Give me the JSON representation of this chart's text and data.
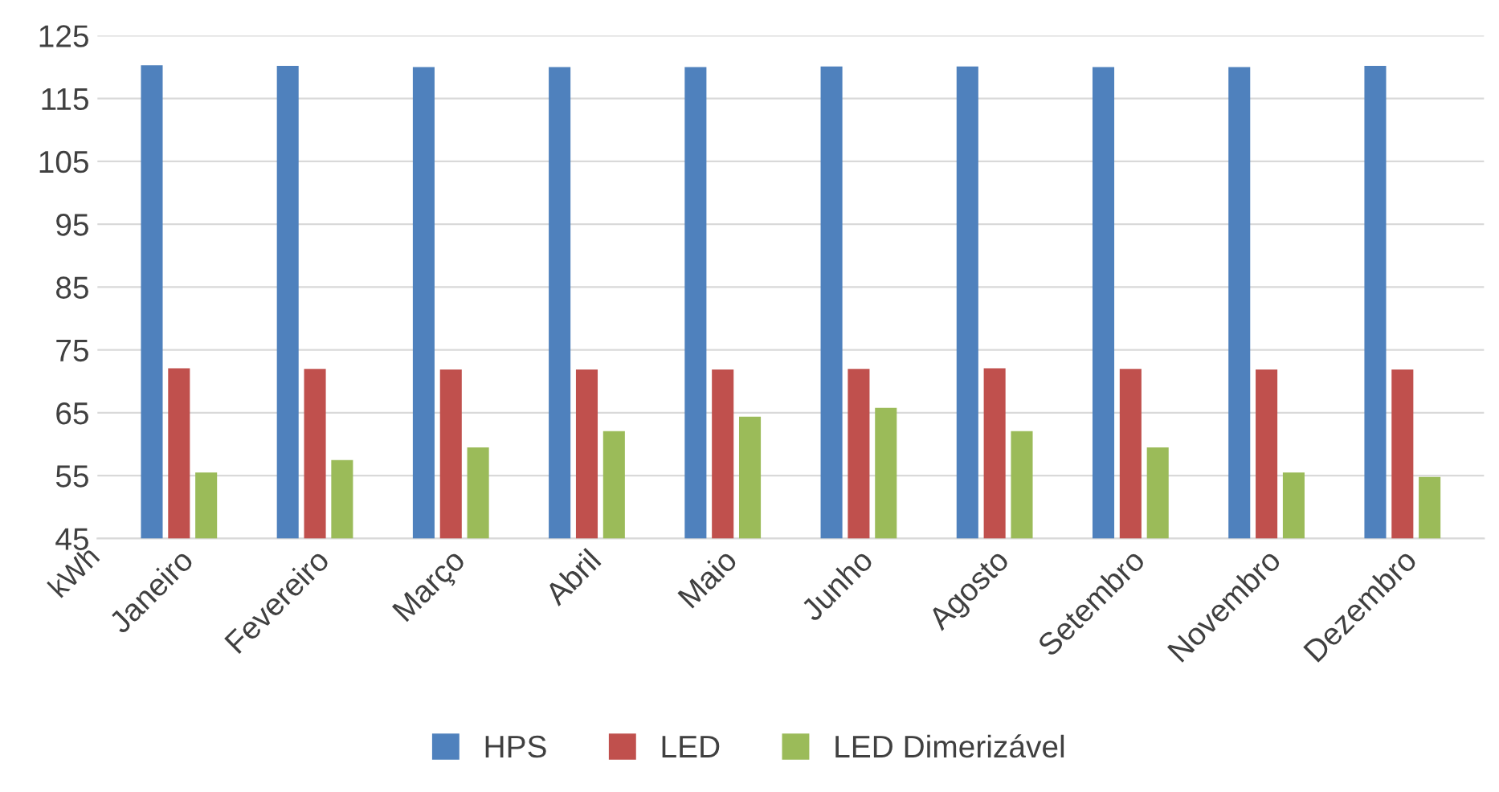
{
  "chart_data": {
    "type": "bar",
    "ylabel": "kWh",
    "categories": [
      "Janeiro",
      "Fevereiro",
      "Março",
      "Abril",
      "Maio",
      "Junho",
      "Agosto",
      "Setembro",
      "Novembro",
      "Dezembro"
    ],
    "series": [
      {
        "name": "HPS",
        "color": "#4f81bd",
        "values": [
          120.3,
          120.2,
          120.0,
          120.0,
          120.0,
          120.1,
          120.1,
          120.0,
          120.0,
          120.2
        ]
      },
      {
        "name": "LED",
        "color": "#c0504d",
        "values": [
          72.1,
          72.0,
          71.9,
          71.9,
          71.9,
          72.0,
          72.1,
          72.0,
          71.9,
          71.9
        ]
      },
      {
        "name": "LED Dimerizável",
        "color": "#9bbb59",
        "values": [
          55.5,
          57.5,
          59.5,
          62.1,
          64.4,
          65.8,
          62.1,
          59.5,
          55.5,
          54.8
        ]
      }
    ],
    "ylim": [
      45,
      125
    ],
    "yticks": [
      45,
      55,
      65,
      75,
      85,
      95,
      105,
      115,
      125
    ],
    "grid": "y",
    "legend": "bottom"
  }
}
